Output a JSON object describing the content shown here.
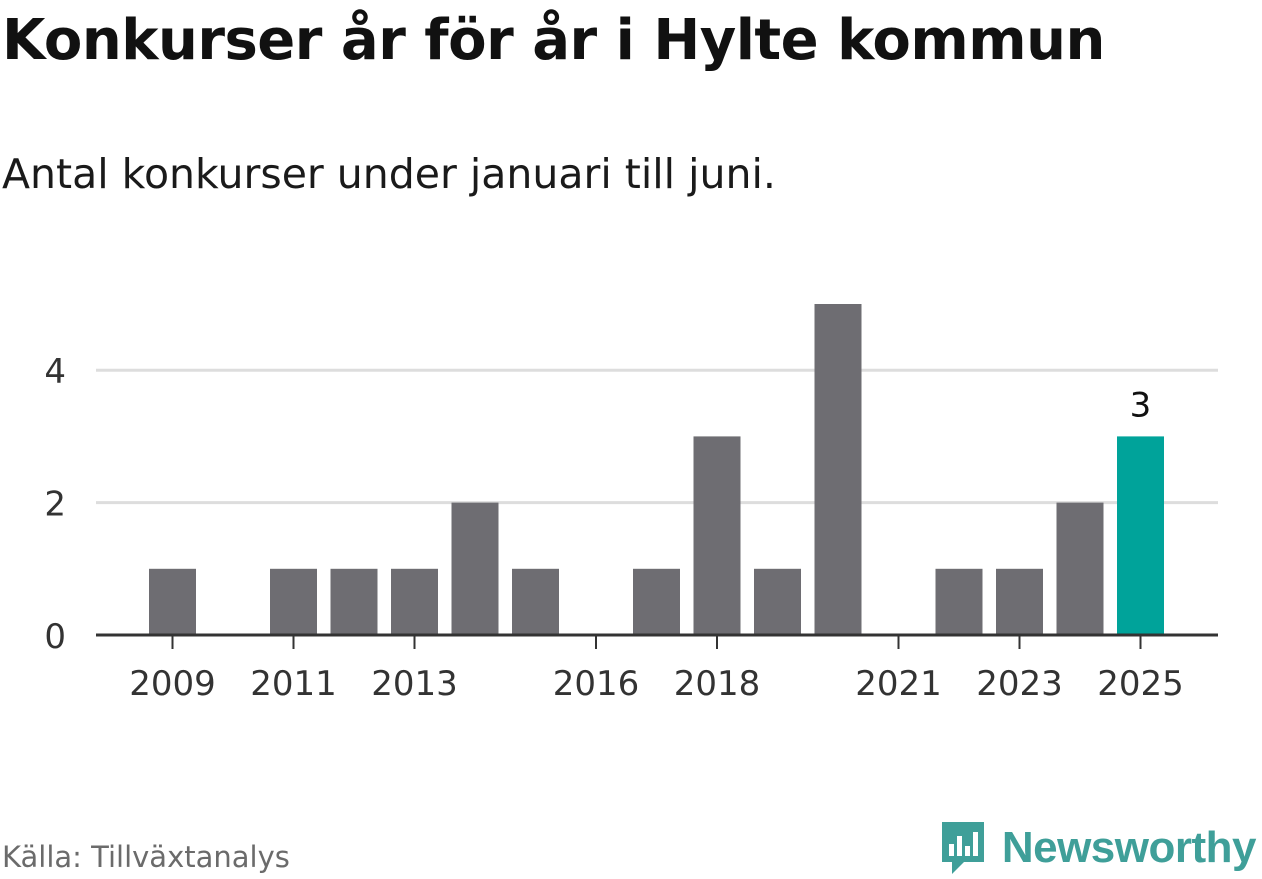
{
  "header": {
    "title": "Konkurser år för år i Hylte kommun",
    "subtitle": "Antal konkurser under januari till juni."
  },
  "footer": {
    "source": "Källa: Tillväxtanalys",
    "brand": "Newsworthy",
    "brand_icon": "newsworthy-logo-icon"
  },
  "colors": {
    "bar": "#6e6d72",
    "highlight": "#00a39a",
    "grid": "#dddddd",
    "axis": "#333333",
    "brand": "#3f9f99"
  },
  "chart_data": {
    "type": "bar",
    "categories": [
      "2009",
      "2010",
      "2011",
      "2012",
      "2013",
      "2014",
      "2015",
      "2016",
      "2017",
      "2018",
      "2019",
      "2020",
      "2021",
      "2022",
      "2023",
      "2024",
      "2025"
    ],
    "values": [
      1,
      0,
      1,
      1,
      1,
      2,
      1,
      0,
      1,
      3,
      1,
      5,
      0,
      1,
      1,
      2,
      3
    ],
    "highlight_index": 16,
    "highlight_label": "3",
    "x_tick_labels": [
      "2009",
      "2011",
      "2013",
      "2016",
      "2018",
      "2021",
      "2023",
      "2025"
    ],
    "y_ticks": [
      0,
      2,
      4
    ],
    "ylim": [
      0,
      5
    ],
    "xlabel": "",
    "ylabel": "",
    "grid": true,
    "legend": "none"
  }
}
